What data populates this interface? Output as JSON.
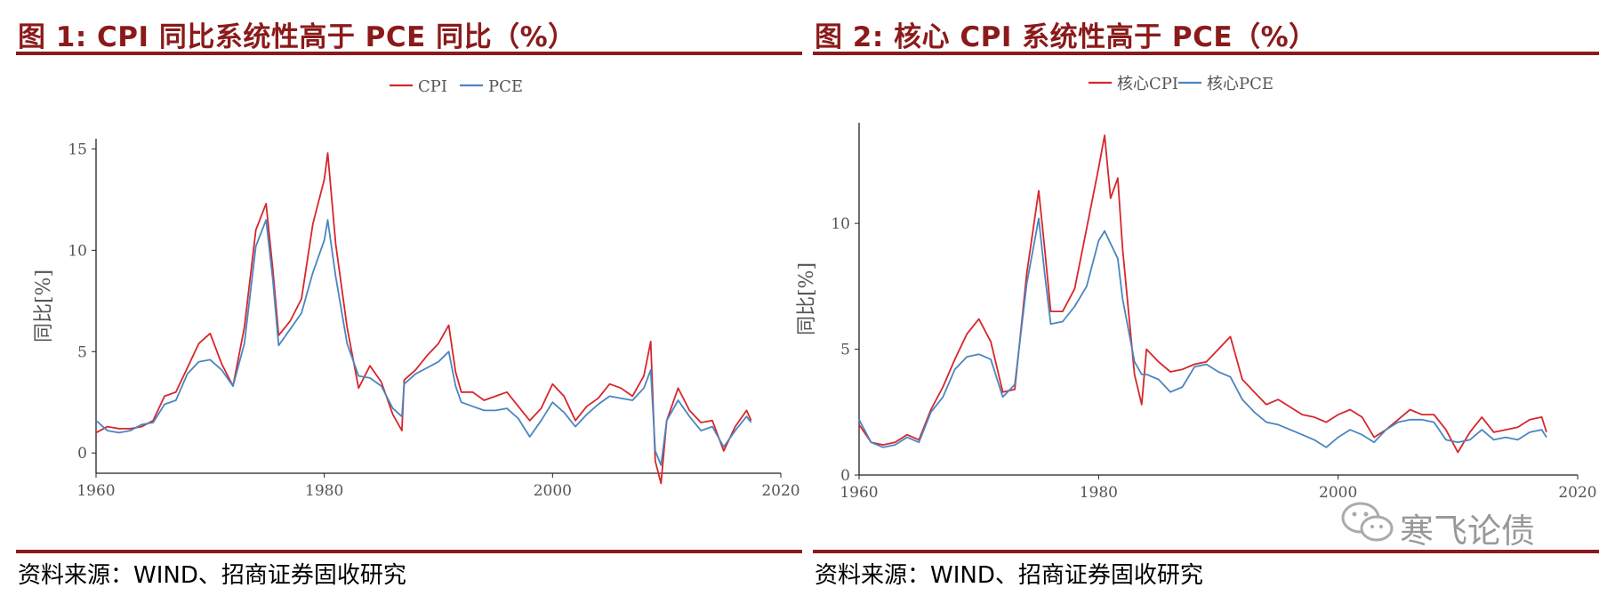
{
  "figures": [
    {
      "title": "图 1:  CPI 同比系统性高于 PCE 同比（%）",
      "source": "资料来源：WIND、招商证券固收研究"
    },
    {
      "title": "图 2:  核心 CPI 系统性高于 PCE（%）",
      "source": "资料来源：WIND、招商证券固收研究"
    }
  ],
  "watermark": {
    "text": "寒飞论债"
  },
  "colors": {
    "title": "#8b1a1a",
    "series_a": "#d7262b",
    "series_b": "#4a86c0"
  },
  "chart_data": [
    {
      "type": "line",
      "title": "",
      "xlabel": "",
      "ylabel": "同比[%]",
      "xlim": [
        1960,
        2020
      ],
      "ylim": [
        -1,
        15.5
      ],
      "x_ticks": [
        "1960",
        "1980",
        "2000",
        "2020"
      ],
      "y_ticks": [
        "0",
        "5",
        "10",
        "15"
      ],
      "legend_position": "top-center",
      "series": [
        {
          "name": "CPI",
          "color": "#d7262b",
          "points": [
            [
              1960,
              1.0
            ],
            [
              1961,
              1.3
            ],
            [
              1962,
              1.2
            ],
            [
              1963,
              1.2
            ],
            [
              1964,
              1.3
            ],
            [
              1965,
              1.6
            ],
            [
              1966,
              2.8
            ],
            [
              1967,
              3.0
            ],
            [
              1968,
              4.2
            ],
            [
              1969,
              5.4
            ],
            [
              1970,
              5.9
            ],
            [
              1971,
              4.4
            ],
            [
              1972,
              3.3
            ],
            [
              1973,
              6.2
            ],
            [
              1974,
              11.0
            ],
            [
              1974.9,
              12.3
            ],
            [
              1975.5,
              9.0
            ],
            [
              1976,
              5.8
            ],
            [
              1977,
              6.5
            ],
            [
              1978,
              7.6
            ],
            [
              1979,
              11.3
            ],
            [
              1980,
              13.5
            ],
            [
              1980.3,
              14.8
            ],
            [
              1981,
              10.3
            ],
            [
              1982,
              6.2
            ],
            [
              1983,
              3.2
            ],
            [
              1984,
              4.3
            ],
            [
              1985,
              3.5
            ],
            [
              1986,
              1.9
            ],
            [
              1986.8,
              1.1
            ],
            [
              1987,
              3.6
            ],
            [
              1988,
              4.1
            ],
            [
              1989,
              4.8
            ],
            [
              1990,
              5.4
            ],
            [
              1990.9,
              6.3
            ],
            [
              1991.5,
              4.0
            ],
            [
              1992,
              3.0
            ],
            [
              1993,
              3.0
            ],
            [
              1994,
              2.6
            ],
            [
              1995,
              2.8
            ],
            [
              1996,
              3.0
            ],
            [
              1997,
              2.3
            ],
            [
              1998,
              1.6
            ],
            [
              1999,
              2.2
            ],
            [
              2000,
              3.4
            ],
            [
              2001,
              2.8
            ],
            [
              2002,
              1.6
            ],
            [
              2003,
              2.3
            ],
            [
              2004,
              2.7
            ],
            [
              2005,
              3.4
            ],
            [
              2006,
              3.2
            ],
            [
              2007,
              2.8
            ],
            [
              2008,
              3.8
            ],
            [
              2008.6,
              5.5
            ],
            [
              2009,
              -0.4
            ],
            [
              2009.5,
              -1.5
            ],
            [
              2010,
              1.6
            ],
            [
              2011,
              3.2
            ],
            [
              2012,
              2.1
            ],
            [
              2013,
              1.5
            ],
            [
              2014,
              1.6
            ],
            [
              2015,
              0.1
            ],
            [
              2016,
              1.3
            ],
            [
              2017,
              2.1
            ],
            [
              2017.4,
              1.6
            ]
          ]
        },
        {
          "name": "PCE",
          "color": "#4a86c0",
          "points": [
            [
              1960,
              1.6
            ],
            [
              1961,
              1.1
            ],
            [
              1962,
              1.0
            ],
            [
              1963,
              1.1
            ],
            [
              1964,
              1.4
            ],
            [
              1965,
              1.5
            ],
            [
              1966,
              2.4
            ],
            [
              1967,
              2.6
            ],
            [
              1968,
              3.9
            ],
            [
              1969,
              4.5
            ],
            [
              1970,
              4.6
            ],
            [
              1971,
              4.1
            ],
            [
              1972,
              3.3
            ],
            [
              1973,
              5.4
            ],
            [
              1974,
              10.2
            ],
            [
              1974.9,
              11.5
            ],
            [
              1975.5,
              8.5
            ],
            [
              1976,
              5.3
            ],
            [
              1977,
              6.1
            ],
            [
              1978,
              6.9
            ],
            [
              1979,
              8.9
            ],
            [
              1980,
              10.5
            ],
            [
              1980.3,
              11.5
            ],
            [
              1981,
              8.7
            ],
            [
              1982,
              5.4
            ],
            [
              1983,
              3.8
            ],
            [
              1984,
              3.7
            ],
            [
              1985,
              3.3
            ],
            [
              1986,
              2.2
            ],
            [
              1986.8,
              1.8
            ],
            [
              1987,
              3.4
            ],
            [
              1988,
              3.9
            ],
            [
              1989,
              4.2
            ],
            [
              1990,
              4.5
            ],
            [
              1990.9,
              5.0
            ],
            [
              1991.5,
              3.3
            ],
            [
              1992,
              2.5
            ],
            [
              1993,
              2.3
            ],
            [
              1994,
              2.1
            ],
            [
              1995,
              2.1
            ],
            [
              1996,
              2.2
            ],
            [
              1997,
              1.7
            ],
            [
              1998,
              0.8
            ],
            [
              1999,
              1.6
            ],
            [
              2000,
              2.5
            ],
            [
              2001,
              2.0
            ],
            [
              2002,
              1.3
            ],
            [
              2003,
              1.9
            ],
            [
              2004,
              2.4
            ],
            [
              2005,
              2.8
            ],
            [
              2006,
              2.7
            ],
            [
              2007,
              2.6
            ],
            [
              2008,
              3.2
            ],
            [
              2008.6,
              4.1
            ],
            [
              2009,
              0.1
            ],
            [
              2009.5,
              -0.6
            ],
            [
              2010,
              1.6
            ],
            [
              2011,
              2.6
            ],
            [
              2012,
              1.8
            ],
            [
              2013,
              1.1
            ],
            [
              2014,
              1.3
            ],
            [
              2015,
              0.3
            ],
            [
              2016,
              1.1
            ],
            [
              2017,
              1.8
            ],
            [
              2017.4,
              1.5
            ]
          ]
        }
      ]
    },
    {
      "type": "line",
      "title": "",
      "xlabel": "",
      "ylabel": "同比[%]",
      "xlim": [
        1960,
        2020
      ],
      "ylim": [
        0,
        14
      ],
      "x_ticks": [
        "1960",
        "1980",
        "2000",
        "2020"
      ],
      "y_ticks": [
        "0",
        "5",
        "10"
      ],
      "legend_position": "top-center",
      "series": [
        {
          "name": "核心CPI",
          "color": "#d7262b",
          "points": [
            [
              1960,
              2.0
            ],
            [
              1961,
              1.3
            ],
            [
              1962,
              1.2
            ],
            [
              1963,
              1.3
            ],
            [
              1964,
              1.6
            ],
            [
              1965,
              1.4
            ],
            [
              1966,
              2.6
            ],
            [
              1967,
              3.5
            ],
            [
              1968,
              4.6
            ],
            [
              1969,
              5.6
            ],
            [
              1970,
              6.2
            ],
            [
              1971,
              5.3
            ],
            [
              1972,
              3.3
            ],
            [
              1973,
              3.4
            ],
            [
              1974,
              8.0
            ],
            [
              1975,
              11.3
            ],
            [
              1975.5,
              9.0
            ],
            [
              1976,
              6.5
            ],
            [
              1977,
              6.5
            ],
            [
              1978,
              7.4
            ],
            [
              1979,
              9.8
            ],
            [
              1980,
              12.2
            ],
            [
              1980.5,
              13.5
            ],
            [
              1981,
              11.0
            ],
            [
              1981.6,
              11.8
            ],
            [
              1982,
              9.0
            ],
            [
              1983,
              4.0
            ],
            [
              1983.6,
              2.8
            ],
            [
              1984,
              5.0
            ],
            [
              1985,
              4.5
            ],
            [
              1986,
              4.1
            ],
            [
              1987,
              4.2
            ],
            [
              1988,
              4.4
            ],
            [
              1989,
              4.5
            ],
            [
              1990,
              5.0
            ],
            [
              1991,
              5.5
            ],
            [
              1992,
              3.8
            ],
            [
              1993,
              3.3
            ],
            [
              1994,
              2.8
            ],
            [
              1995,
              3.0
            ],
            [
              1996,
              2.7
            ],
            [
              1997,
              2.4
            ],
            [
              1998,
              2.3
            ],
            [
              1999,
              2.1
            ],
            [
              2000,
              2.4
            ],
            [
              2001,
              2.6
            ],
            [
              2002,
              2.3
            ],
            [
              2003,
              1.5
            ],
            [
              2004,
              1.8
            ],
            [
              2005,
              2.2
            ],
            [
              2006,
              2.6
            ],
            [
              2007,
              2.4
            ],
            [
              2008,
              2.4
            ],
            [
              2009,
              1.8
            ],
            [
              2010,
              0.9
            ],
            [
              2011,
              1.7
            ],
            [
              2012,
              2.3
            ],
            [
              2013,
              1.7
            ],
            [
              2014,
              1.8
            ],
            [
              2015,
              1.9
            ],
            [
              2016,
              2.2
            ],
            [
              2017,
              2.3
            ],
            [
              2017.4,
              1.7
            ]
          ]
        },
        {
          "name": "核心PCE",
          "color": "#4a86c0",
          "points": [
            [
              1960,
              2.2
            ],
            [
              1961,
              1.3
            ],
            [
              1962,
              1.1
            ],
            [
              1963,
              1.2
            ],
            [
              1964,
              1.5
            ],
            [
              1965,
              1.3
            ],
            [
              1966,
              2.5
            ],
            [
              1967,
              3.1
            ],
            [
              1968,
              4.2
            ],
            [
              1969,
              4.7
            ],
            [
              1970,
              4.8
            ],
            [
              1971,
              4.6
            ],
            [
              1972,
              3.1
            ],
            [
              1973,
              3.6
            ],
            [
              1974,
              7.6
            ],
            [
              1975,
              10.2
            ],
            [
              1975.5,
              8.0
            ],
            [
              1976,
              6.0
            ],
            [
              1977,
              6.1
            ],
            [
              1978,
              6.7
            ],
            [
              1979,
              7.5
            ],
            [
              1980,
              9.3
            ],
            [
              1980.5,
              9.7
            ],
            [
              1981,
              9.2
            ],
            [
              1981.6,
              8.6
            ],
            [
              1982,
              7.0
            ],
            [
              1983,
              4.5
            ],
            [
              1983.6,
              4.0
            ],
            [
              1984,
              4.0
            ],
            [
              1985,
              3.8
            ],
            [
              1986,
              3.3
            ],
            [
              1987,
              3.5
            ],
            [
              1988,
              4.3
            ],
            [
              1989,
              4.4
            ],
            [
              1990,
              4.1
            ],
            [
              1991,
              3.9
            ],
            [
              1992,
              3.0
            ],
            [
              1993,
              2.5
            ],
            [
              1994,
              2.1
            ],
            [
              1995,
              2.0
            ],
            [
              1996,
              1.8
            ],
            [
              1997,
              1.6
            ],
            [
              1998,
              1.4
            ],
            [
              1999,
              1.1
            ],
            [
              2000,
              1.5
            ],
            [
              2001,
              1.8
            ],
            [
              2002,
              1.6
            ],
            [
              2003,
              1.3
            ],
            [
              2004,
              1.8
            ],
            [
              2005,
              2.1
            ],
            [
              2006,
              2.2
            ],
            [
              2007,
              2.2
            ],
            [
              2008,
              2.1
            ],
            [
              2009,
              1.4
            ],
            [
              2010,
              1.3
            ],
            [
              2011,
              1.4
            ],
            [
              2012,
              1.8
            ],
            [
              2013,
              1.4
            ],
            [
              2014,
              1.5
            ],
            [
              2015,
              1.4
            ],
            [
              2016,
              1.7
            ],
            [
              2017,
              1.8
            ],
            [
              2017.4,
              1.5
            ]
          ]
        }
      ]
    }
  ]
}
